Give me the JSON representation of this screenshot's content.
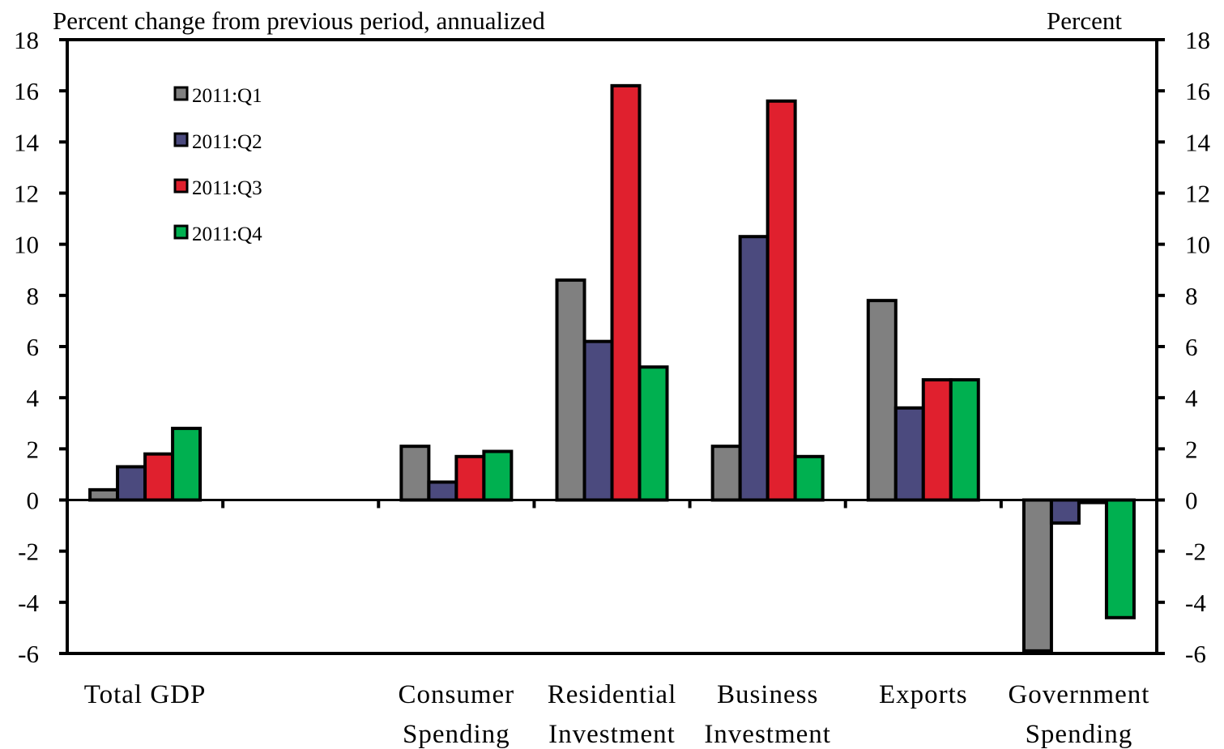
{
  "chart_data": {
    "type": "bar",
    "left_axis_label": "Percent change from previous period, annualized",
    "right_axis_label": "Percent",
    "ylim": [
      -6,
      18
    ],
    "yticks": [
      "-6",
      "-4",
      "-2",
      "0",
      "2",
      "4",
      "6",
      "8",
      "10",
      "12",
      "14",
      "16",
      "18"
    ],
    "grid": false,
    "legend_position": "top-left",
    "categories": [
      {
        "line1": "Total GDP",
        "line2": ""
      },
      {
        "line1": "",
        "line2": ""
      },
      {
        "line1": "Consumer",
        "line2": "Spending"
      },
      {
        "line1": "Residential",
        "line2": "Investment"
      },
      {
        "line1": "Business",
        "line2": "Investment"
      },
      {
        "line1": "Exports",
        "line2": ""
      },
      {
        "line1": "Government",
        "line2": "Spending"
      }
    ],
    "series": [
      {
        "name": "2011:Q1",
        "color": "#808080",
        "values": [
          0.4,
          null,
          2.1,
          8.6,
          2.1,
          7.8,
          -5.9
        ]
      },
      {
        "name": "2011:Q2",
        "color": "#4b4a7e",
        "values": [
          1.3,
          null,
          0.7,
          6.2,
          10.3,
          3.6,
          -0.9
        ]
      },
      {
        "name": "2011:Q3",
        "color": "#e0202e",
        "values": [
          1.8,
          null,
          1.7,
          16.2,
          15.6,
          4.7,
          -0.1
        ]
      },
      {
        "name": "2011:Q4",
        "color": "#00b050",
        "values": [
          2.8,
          null,
          1.9,
          5.2,
          1.7,
          4.7,
          -4.6
        ]
      }
    ]
  }
}
